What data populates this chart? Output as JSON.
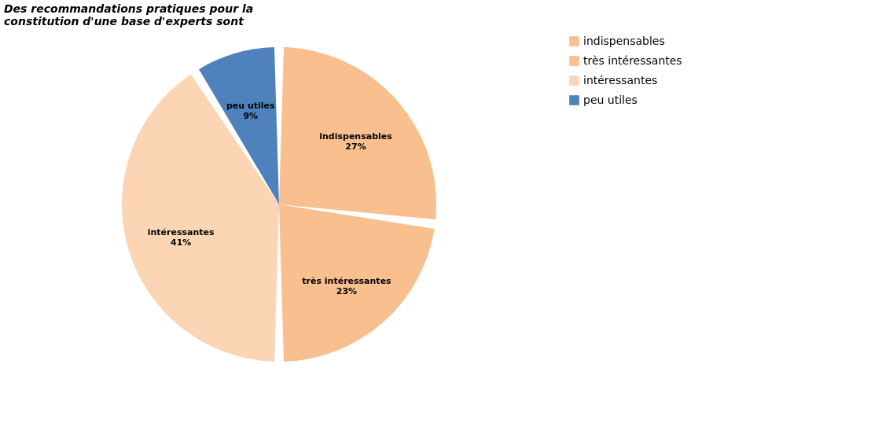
{
  "chart_data": {
    "type": "pie",
    "title": "Des recommandations pratiques pour la constitution d'une base d'experts sont",
    "categories": [
      "indispensables",
      "très intéressantes",
      "intéressantes",
      "peu utiles"
    ],
    "values": [
      27,
      23,
      41,
      9
    ],
    "value_labels": [
      "27%",
      "23%",
      "41%",
      "9%"
    ],
    "colors": [
      "#f9bf8f",
      "#f9bf8f",
      "#fcd5b4",
      "#4f81bd"
    ],
    "legend": "right"
  }
}
